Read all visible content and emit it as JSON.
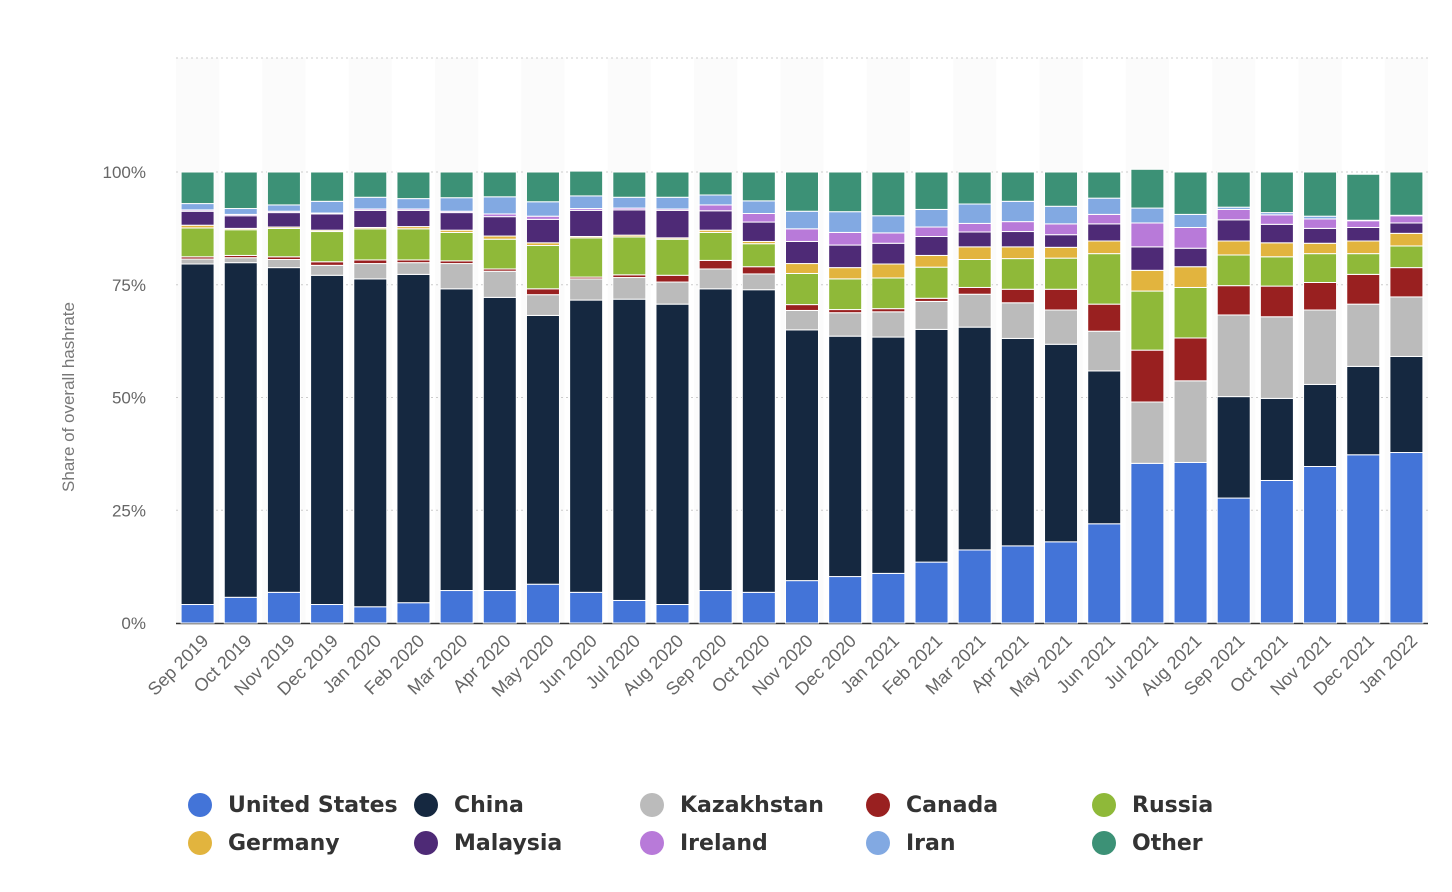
{
  "chart_data": {
    "type": "bar",
    "stacked": true,
    "ylabel": "Share of overall hashrate",
    "xlabel": "",
    "ylim": [
      0,
      100
    ],
    "yticks": [
      "0%",
      "25%",
      "50%",
      "75%",
      "100%"
    ],
    "grid": true,
    "legend_position": "bottom",
    "categories": [
      "Sep 2019",
      "Oct 2019",
      "Nov 2019",
      "Dec 2019",
      "Jan 2020",
      "Feb 2020",
      "Mar 2020",
      "Apr 2020",
      "May 2020",
      "Jun 2020",
      "Jul 2020",
      "Aug 2020",
      "Sep 2020",
      "Oct 2020",
      "Nov 2020",
      "Dec 2020",
      "Jan 2021",
      "Feb 2021",
      "Mar 2021",
      "Apr 2021",
      "May 2021",
      "Jun 2021",
      "Jul 2021",
      "Aug 2021",
      "Sep 2021",
      "Oct 2021",
      "Nov 2021",
      "Dec 2021",
      "Jan 2022"
    ],
    "series": [
      {
        "name": "United States",
        "color": "#4374d8",
        "values": [
          4.1,
          5.7,
          6.8,
          4.1,
          3.6,
          4.5,
          7.2,
          7.2,
          8.6,
          6.8,
          5,
          4.1,
          7.2,
          6.8,
          9.4,
          10.3,
          11,
          13.5,
          16.2,
          17.1,
          18,
          22,
          35.4,
          35.6,
          27.7,
          31.6,
          34.7,
          37.3,
          37.8
        ]
      },
      {
        "name": "China",
        "color": "#152840",
        "values": [
          75.5,
          74.2,
          72,
          73,
          72.7,
          72.8,
          66.9,
          65,
          59.6,
          64.8,
          66.8,
          66.6,
          66.9,
          67.1,
          55.6,
          53.3,
          52.4,
          51.6,
          49.4,
          46,
          43.8,
          33.9,
          0,
          0,
          22.5,
          18.2,
          18.2,
          19.6,
          21.3
        ]
      },
      {
        "name": "Kazakhstan",
        "color": "#bbbbbb",
        "values": [
          1.1,
          1.1,
          1.8,
          2.2,
          3.4,
          2.6,
          5.6,
          5.8,
          4.6,
          4.7,
          4.8,
          4.9,
          4.4,
          3.5,
          4.3,
          5.2,
          5.6,
          6.2,
          7.3,
          7.9,
          7.6,
          8.8,
          13.6,
          18.1,
          18.1,
          18.1,
          16.5,
          13.8,
          13.2
        ]
      },
      {
        "name": "Canada",
        "color": "#992020",
        "values": [
          0.5,
          0.5,
          0.6,
          0.8,
          0.8,
          0.6,
          0.6,
          0.5,
          1.3,
          0.4,
          0.6,
          1.5,
          1.9,
          1.6,
          1.3,
          0.7,
          0.7,
          0.7,
          1.5,
          3,
          4.6,
          6,
          11.5,
          9.5,
          6.5,
          6.8,
          6.1,
          6.6,
          6.5
        ]
      },
      {
        "name": "Russia",
        "color": "#8fb939",
        "values": [
          6.4,
          5.7,
          6.3,
          6.7,
          6.9,
          6.9,
          6.3,
          6.6,
          9.6,
          8.7,
          8.4,
          8,
          6.2,
          5.1,
          6.9,
          6.8,
          6.8,
          6.9,
          6.2,
          6.8,
          6.9,
          11.2,
          13.1,
          11.2,
          6.8,
          6.5,
          6.4,
          4.6,
          4.8
        ]
      },
      {
        "name": "Germany",
        "color": "#e2b43e",
        "values": [
          0.6,
          0.3,
          0.3,
          0.3,
          0.3,
          0.5,
          0.5,
          0.7,
          0.6,
          0.3,
          0.4,
          0.3,
          0.5,
          0.5,
          2.2,
          2.5,
          3.1,
          2.6,
          2.8,
          2.6,
          2.4,
          2.8,
          4.6,
          4.6,
          3.1,
          3.1,
          2.3,
          2.8,
          2.8
        ]
      },
      {
        "name": "Malaysia",
        "color": "#4e2a76",
        "values": [
          3.1,
          2.8,
          3.2,
          3.6,
          3.8,
          3.6,
          3.9,
          4.3,
          5.2,
          5.8,
          5.6,
          6.1,
          4.3,
          4.3,
          4.9,
          5,
          4.6,
          4.2,
          3.3,
          3.4,
          2.8,
          3.8,
          5.2,
          4.1,
          4.7,
          4.1,
          3.3,
          3,
          2.3
        ]
      },
      {
        "name": "Ireland",
        "color": "#b87ad9",
        "values": [
          0.3,
          0.3,
          0.3,
          0.2,
          0.3,
          0.3,
          0.3,
          0.6,
          0.7,
          0.4,
          0.4,
          0.3,
          1.3,
          1.9,
          2.8,
          2.8,
          2.3,
          2.1,
          1.9,
          2.2,
          2.4,
          2.1,
          5.3,
          4.6,
          2.3,
          2.1,
          2.1,
          1.5,
          1.6
        ]
      },
      {
        "name": "Iran",
        "color": "#82a9e2",
        "values": [
          1.4,
          1.3,
          1.4,
          2.6,
          2.6,
          2.3,
          3,
          3.8,
          3.2,
          2.8,
          2.4,
          2.6,
          2.2,
          2.8,
          3.9,
          4.6,
          3.8,
          3.9,
          4.3,
          4.5,
          3.9,
          3.6,
          3.3,
          2.9,
          0.5,
          0.5,
          0.6,
          0.1,
          0.1
        ]
      },
      {
        "name": "Other",
        "color": "#3c9176",
        "values": [
          7,
          8.1,
          7.3,
          6.5,
          5.6,
          5.9,
          5.7,
          5.5,
          6.6,
          5.5,
          5.6,
          5.6,
          5.1,
          6.4,
          8.7,
          8.8,
          9.7,
          8.3,
          7.1,
          6.5,
          7.6,
          5.8,
          8.6,
          9.4,
          7.8,
          9,
          9.8,
          10.2,
          9.6
        ]
      }
    ]
  },
  "legend": {
    "items": [
      {
        "label": "United States",
        "color": "#4374d8"
      },
      {
        "label": "China",
        "color": "#152840"
      },
      {
        "label": "Kazakhstan",
        "color": "#bbbbbb"
      },
      {
        "label": "Canada",
        "color": "#992020"
      },
      {
        "label": "Russia",
        "color": "#8fb939"
      },
      {
        "label": "Germany",
        "color": "#e2b43e"
      },
      {
        "label": "Malaysia",
        "color": "#4e2a76"
      },
      {
        "label": "Ireland",
        "color": "#b87ad9"
      },
      {
        "label": "Iran",
        "color": "#82a9e2"
      },
      {
        "label": "Other",
        "color": "#3c9176"
      }
    ]
  }
}
